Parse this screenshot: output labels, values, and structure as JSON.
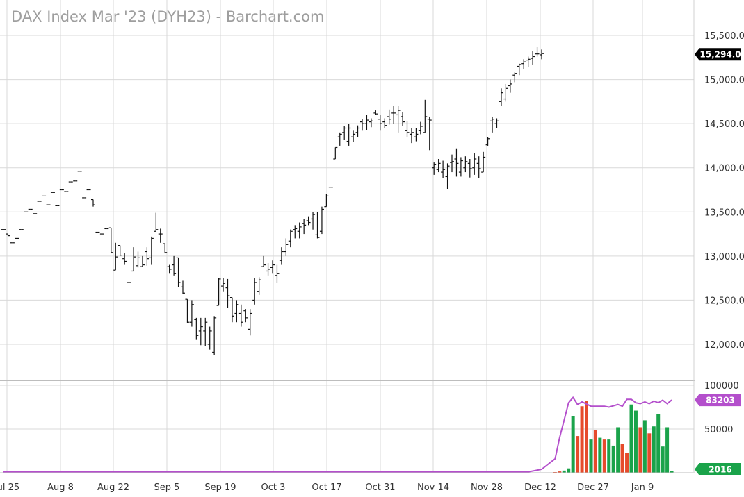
{
  "chart_data": {
    "type": "bar",
    "title": "DAX Index Mar '23 (DYH23) - Barchart.com",
    "price_axis": {
      "ticks": [
        "15,500.0",
        "15,000.0",
        "14,500.0",
        "14,000.0",
        "13,500.0",
        "13,000.0",
        "12,500.0",
        "12,000.0"
      ],
      "tick_values": [
        15500,
        15000,
        14500,
        14000,
        13500,
        13000,
        12500,
        12000
      ],
      "ylim": [
        11600,
        15700
      ]
    },
    "last_price": {
      "label": "15,294.0",
      "value": 15294,
      "color": "#000000"
    },
    "volume_axis": {
      "ticks": [
        "100000",
        "50000"
      ],
      "tick_values": [
        100000,
        50000
      ],
      "ylim": [
        0,
        100000
      ]
    },
    "open_interest_last": {
      "label": "83203",
      "value": 83203,
      "color": "#b44fcc"
    },
    "volume_last": {
      "label": "2016",
      "value": 2016,
      "color": "#1aa34a"
    },
    "x_labels": [
      "Jul 25",
      "Aug 8",
      "Aug 22",
      "Sep 5",
      "Sep 19",
      "Oct 3",
      "Oct 17",
      "Oct 31",
      "Nov 14",
      "Nov 28",
      "Dec 12",
      "Dec 27",
      "Jan 9"
    ],
    "ohlc": [
      [
        13300,
        13300,
        13300,
        13300
      ],
      [
        13250,
        13250,
        13230,
        13230
      ],
      [
        13150,
        13150,
        13150,
        13150
      ],
      [
        13200,
        13200,
        13200,
        13200
      ],
      [
        13300,
        13300,
        13300,
        13300
      ],
      [
        13500,
        13500,
        13500,
        13500
      ],
      [
        13530,
        13530,
        13530,
        13530
      ],
      [
        13480,
        13480,
        13480,
        13480
      ],
      [
        13620,
        13620,
        13620,
        13620
      ],
      [
        13680,
        13680,
        13680,
        13680
      ],
      [
        13580,
        13580,
        13580,
        13580
      ],
      [
        13720,
        13720,
        13720,
        13720
      ],
      [
        13570,
        13570,
        13570,
        13570
      ],
      [
        13750,
        13750,
        13750,
        13750
      ],
      [
        13730,
        13730,
        13730,
        13730
      ],
      [
        13840,
        13840,
        13840,
        13840
      ],
      [
        13850,
        13850,
        13850,
        13850
      ],
      [
        13960,
        13960,
        13960,
        13960
      ],
      [
        13660,
        13660,
        13660,
        13660
      ],
      [
        13750,
        13750,
        13750,
        13750
      ],
      [
        13640,
        13640,
        13560,
        13580
      ],
      [
        13270,
        13270,
        13270,
        13270
      ],
      [
        13250,
        13250,
        13250,
        13250
      ],
      [
        13310,
        13310,
        13310,
        13310
      ],
      [
        13320,
        13320,
        13030,
        13040
      ],
      [
        12840,
        13150,
        12840,
        12990
      ],
      [
        13120,
        13120,
        13000,
        13010
      ],
      [
        12970,
        13030,
        12900,
        12940
      ],
      [
        12700,
        12700,
        12700,
        12700
      ],
      [
        12830,
        13100,
        12830,
        12990
      ],
      [
        12890,
        13050,
        12870,
        12980
      ],
      [
        12880,
        13000,
        12880,
        12900
      ],
      [
        13050,
        13100,
        12890,
        12970
      ],
      [
        12980,
        13220,
        12900,
        13200
      ],
      [
        13280,
        13490,
        13280,
        13300
      ],
      [
        13250,
        13310,
        13150,
        13250
      ],
      [
        13140,
        13140,
        13030,
        13040
      ],
      [
        12880,
        12900,
        12800,
        12850
      ],
      [
        12900,
        13000,
        12780,
        12800
      ],
      [
        12980,
        12980,
        12650,
        12700
      ],
      [
        12650,
        12720,
        12570,
        12580
      ],
      [
        12510,
        12510,
        12240,
        12250
      ],
      [
        12250,
        12500,
        12200,
        12450
      ],
      [
        12280,
        12300,
        12050,
        12100
      ],
      [
        12150,
        12300,
        11990,
        12200
      ],
      [
        12150,
        12300,
        11980,
        12250
      ],
      [
        12000,
        12200,
        11940,
        12150
      ],
      [
        11910,
        12320,
        11880,
        12300
      ],
      [
        12440,
        12750,
        12440,
        12740
      ],
      [
        12660,
        12750,
        12600,
        12690
      ],
      [
        12640,
        12740,
        12410,
        12550
      ],
      [
        12530,
        12530,
        12250,
        12320
      ],
      [
        12350,
        12500,
        12250,
        12450
      ],
      [
        12350,
        12450,
        12200,
        12250
      ],
      [
        12380,
        12400,
        12250,
        12300
      ],
      [
        12170,
        12400,
        12100,
        12350
      ],
      [
        12500,
        12750,
        12450,
        12700
      ],
      [
        12600,
        12760,
        12560,
        12730
      ],
      [
        12880,
        13000,
        12880,
        12900
      ],
      [
        12830,
        12920,
        12780,
        12850
      ],
      [
        12870,
        12950,
        12800,
        12900
      ],
      [
        12780,
        12900,
        12700,
        12800
      ],
      [
        12950,
        13100,
        12900,
        13050
      ],
      [
        13050,
        13200,
        13000,
        13130
      ],
      [
        13170,
        13300,
        13100,
        13280
      ],
      [
        13300,
        13350,
        13200,
        13310
      ],
      [
        13280,
        13380,
        13200,
        13330
      ],
      [
        13370,
        13420,
        13250,
        13350
      ],
      [
        13400,
        13450,
        13350,
        13380
      ],
      [
        13420,
        13500,
        13300,
        13470
      ],
      [
        13240,
        13500,
        13200,
        13210
      ],
      [
        13280,
        13560,
        13250,
        13530
      ],
      [
        13560,
        13700,
        13560,
        13680
      ],
      [
        13780,
        13780,
        13780,
        13780
      ],
      [
        14100,
        14230,
        14100,
        14230
      ],
      [
        14350,
        14400,
        14250,
        14380
      ],
      [
        14400,
        14470,
        14320,
        14450
      ],
      [
        14300,
        14500,
        14250,
        14450
      ],
      [
        14350,
        14420,
        14290,
        14380
      ],
      [
        14400,
        14480,
        14350,
        14450
      ],
      [
        14520,
        14550,
        14420,
        14500
      ],
      [
        14500,
        14600,
        14430,
        14540
      ],
      [
        14520,
        14560,
        14460,
        14530
      ],
      [
        14620,
        14650,
        14600,
        14610
      ],
      [
        14550,
        14600,
        14420,
        14500
      ],
      [
        14520,
        14560,
        14450,
        14480
      ],
      [
        14580,
        14660,
        14490,
        14550
      ],
      [
        14620,
        14700,
        14500,
        14620
      ],
      [
        14600,
        14700,
        14400,
        14650
      ],
      [
        14580,
        14630,
        14470,
        14520
      ],
      [
        14420,
        14530,
        14350,
        14400
      ],
      [
        14380,
        14450,
        14280,
        14400
      ],
      [
        14350,
        14450,
        14300,
        14380
      ],
      [
        14420,
        14520,
        14380,
        14470
      ],
      [
        14400,
        14770,
        14400,
        14580
      ],
      [
        14550,
        14580,
        14200,
        14540
      ],
      [
        14000,
        14060,
        13920,
        14040
      ],
      [
        13980,
        14100,
        13950,
        14050
      ],
      [
        13950,
        14080,
        13880,
        13980
      ],
      [
        13900,
        14050,
        13760,
        14020
      ],
      [
        14060,
        14150,
        13950,
        14070
      ],
      [
        14100,
        14220,
        13900,
        14050
      ],
      [
        13950,
        14120,
        13900,
        14080
      ],
      [
        14000,
        14130,
        13950,
        14070
      ],
      [
        14050,
        14100,
        13890,
        13990
      ],
      [
        14000,
        14170,
        13920,
        14100
      ],
      [
        14050,
        14130,
        13880,
        13990
      ],
      [
        13950,
        14180,
        13950,
        14120
      ],
      [
        14260,
        14350,
        14250,
        14330
      ],
      [
        14530,
        14580,
        14400,
        14550
      ],
      [
        14500,
        14560,
        14450,
        14530
      ],
      [
        14750,
        14900,
        14700,
        14850
      ],
      [
        14780,
        14950,
        14750,
        14900
      ],
      [
        14930,
        15000,
        14850,
        14950
      ],
      [
        15050,
        15080,
        14970,
        15070
      ],
      [
        15150,
        15180,
        15050,
        15170
      ],
      [
        15180,
        15230,
        15120,
        15200
      ],
      [
        15220,
        15260,
        15140,
        15230
      ],
      [
        15240,
        15320,
        15170,
        15260
      ],
      [
        15290,
        15370,
        15260,
        15290
      ],
      [
        15280,
        15340,
        15230,
        15294
      ]
    ],
    "volume": [
      {
        "v": 800,
        "c": "#e64b2b"
      },
      {
        "v": 1500,
        "c": "#e64b2b"
      },
      {
        "v": 2500,
        "c": "#1aa34a"
      },
      {
        "v": 5000,
        "c": "#1aa34a"
      },
      {
        "v": 65000,
        "c": "#1aa34a"
      },
      {
        "v": 42000,
        "c": "#e64b2b"
      },
      {
        "v": 76000,
        "c": "#e64b2b"
      },
      {
        "v": 82000,
        "c": "#e64b2b"
      },
      {
        "v": 38000,
        "c": "#1aa34a"
      },
      {
        "v": 49000,
        "c": "#e64b2b"
      },
      {
        "v": 40000,
        "c": "#1aa34a"
      },
      {
        "v": 38000,
        "c": "#e64b2b"
      },
      {
        "v": 38000,
        "c": "#1aa34a"
      },
      {
        "v": 31000,
        "c": "#1aa34a"
      },
      {
        "v": 52000,
        "c": "#1aa34a"
      },
      {
        "v": 33000,
        "c": "#e64b2b"
      },
      {
        "v": 23000,
        "c": "#e64b2b"
      },
      {
        "v": 78000,
        "c": "#1aa34a"
      },
      {
        "v": 71000,
        "c": "#1aa34a"
      },
      {
        "v": 52000,
        "c": "#e64b2b"
      },
      {
        "v": 60000,
        "c": "#1aa34a"
      },
      {
        "v": 45000,
        "c": "#e64b2b"
      },
      {
        "v": 53000,
        "c": "#1aa34a"
      },
      {
        "v": 67000,
        "c": "#1aa34a"
      },
      {
        "v": 30000,
        "c": "#1aa34a"
      },
      {
        "v": 52000,
        "c": "#1aa34a"
      },
      {
        "v": 2016,
        "c": "#1aa34a"
      }
    ],
    "open_interest": [
      {
        "i": 0,
        "v": 800
      },
      {
        "i": 117,
        "v": 1000
      },
      {
        "i": 118,
        "v": 2000
      },
      {
        "i": 120,
        "v": 4000
      },
      {
        "i": 121,
        "v": 8000
      },
      {
        "i": 123,
        "v": 16000
      },
      {
        "i": 124,
        "v": 40000
      },
      {
        "i": 125,
        "v": 60000
      },
      {
        "i": 126,
        "v": 80000
      },
      {
        "i": 127,
        "v": 86000
      },
      {
        "i": 128,
        "v": 78000
      },
      {
        "i": 129,
        "v": 81000
      },
      {
        "i": 131,
        "v": 76000
      },
      {
        "i": 134,
        "v": 76000
      },
      {
        "i": 135,
        "v": 75000
      },
      {
        "i": 137,
        "v": 78000
      },
      {
        "i": 138,
        "v": 76000
      },
      {
        "i": 139,
        "v": 84000
      },
      {
        "i": 140,
        "v": 84000
      },
      {
        "i": 141,
        "v": 80000
      },
      {
        "i": 142,
        "v": 79000
      },
      {
        "i": 143,
        "v": 81000
      },
      {
        "i": 144,
        "v": 79000
      },
      {
        "i": 145,
        "v": 82000
      },
      {
        "i": 146,
        "v": 80000
      },
      {
        "i": 147,
        "v": 83000
      },
      {
        "i": 148,
        "v": 79000
      },
      {
        "i": 149,
        "v": 83203
      }
    ]
  }
}
